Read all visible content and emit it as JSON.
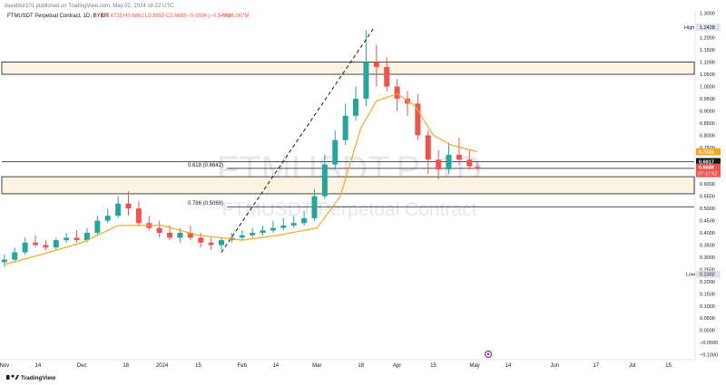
{
  "header": {
    "author_line": "daviddor101 published on TradingView.com, May 02, 2024 16:22 UTC",
    "symbol_line": "FTMUSDT Perpetual Contract, 1D, BYBIT",
    "ohlc": {
      "o": "O0.6725",
      "h": "H0.6862",
      "l": "L0.6555",
      "c": "C0.6689",
      "chg": "−0.0036 (−0.54%)",
      "vol": "Vol6.067M"
    }
  },
  "watermark": {
    "symbol": "FTMUSDT.P, 1D",
    "name": "FTMUSDT Perpetual Contract"
  },
  "footer": {
    "brand": "TradingView"
  },
  "colors": {
    "up": "#26a69a",
    "down": "#ef5350",
    "ema": "#f5a623",
    "zone_fill": "#fdf3e3",
    "price_tag": "#ef5350",
    "ema_tag": "#f5a623",
    "level_tag": "#131722"
  },
  "chart_data": {
    "type": "candlestick",
    "y_ticks": [
      "1.3000",
      "1.2000",
      "1.1500",
      "1.1000",
      "1.0500",
      "1.0000",
      "0.9500",
      "0.9000",
      "0.8500",
      "0.8000",
      "0.7500",
      "0.6500",
      "0.6000",
      "0.5500",
      "0.5000",
      "0.4500",
      "0.4000",
      "0.3500",
      "0.3000",
      "0.2500",
      "0.2000",
      "0.1500",
      "0.1000",
      "0.0500",
      "0.0000",
      "−0.0500",
      "−0.1000"
    ],
    "ylim": [
      -0.12,
      1.31
    ],
    "x_ticks": [
      "Nov",
      "14",
      "Dec",
      "18",
      "2024",
      "15",
      "Feb",
      "14",
      "Mar",
      "18",
      "Apr",
      "15",
      "May",
      "14",
      "Jun",
      "17",
      "Jul",
      "15"
    ],
    "x_tick_dates": [
      "2023-11-01",
      "2023-11-14",
      "2023-12-01",
      "2023-12-18",
      "2024-01-01",
      "2024-01-15",
      "2024-02-01",
      "2024-02-14",
      "2024-03-01",
      "2024-03-18",
      "2024-04-01",
      "2024-04-15",
      "2024-05-01",
      "2024-05-14",
      "2024-06-01",
      "2024-06-17",
      "2024-07-01",
      "2024-07-15"
    ],
    "xlim": [
      "2023-10-31",
      "2024-07-25"
    ],
    "series": [
      {
        "type": "candlestick",
        "dates": [
          "2023-11-01",
          "2023-11-05",
          "2023-11-09",
          "2023-11-13",
          "2023-11-17",
          "2023-11-21",
          "2023-11-25",
          "2023-11-29",
          "2023-12-03",
          "2023-12-07",
          "2023-12-11",
          "2023-12-15",
          "2023-12-19",
          "2023-12-23",
          "2023-12-27",
          "2023-12-31",
          "2024-01-04",
          "2024-01-08",
          "2024-01-12",
          "2024-01-16",
          "2024-01-20",
          "2024-01-24",
          "2024-01-28",
          "2024-02-01",
          "2024-02-05",
          "2024-02-09",
          "2024-02-13",
          "2024-02-17",
          "2024-02-21",
          "2024-02-25",
          "2024-02-29",
          "2024-03-04",
          "2024-03-08",
          "2024-03-12",
          "2024-03-16",
          "2024-03-20",
          "2024-03-24",
          "2024-03-28",
          "2024-04-01",
          "2024-04-05",
          "2024-04-09",
          "2024-04-13",
          "2024-04-17",
          "2024-04-21",
          "2024-04-25",
          "2024-04-29",
          "2024-05-02"
        ],
        "open": [
          0.28,
          0.29,
          0.32,
          0.36,
          0.35,
          0.34,
          0.37,
          0.38,
          0.37,
          0.4,
          0.45,
          0.47,
          0.52,
          0.5,
          0.44,
          0.42,
          0.4,
          0.38,
          0.4,
          0.38,
          0.36,
          0.35,
          0.37,
          0.38,
          0.39,
          0.4,
          0.41,
          0.42,
          0.43,
          0.44,
          0.46,
          0.55,
          0.68,
          0.78,
          0.88,
          0.95,
          1.1,
          1.08,
          1.0,
          0.95,
          0.93,
          0.8,
          0.7,
          0.66,
          0.72,
          0.7,
          0.6725
        ],
        "high": [
          0.31,
          0.34,
          0.38,
          0.39,
          0.37,
          0.38,
          0.4,
          0.41,
          0.42,
          0.47,
          0.5,
          0.55,
          0.57,
          0.53,
          0.47,
          0.45,
          0.43,
          0.42,
          0.43,
          0.4,
          0.38,
          0.38,
          0.4,
          0.41,
          0.42,
          0.43,
          0.45,
          0.46,
          0.47,
          0.49,
          0.58,
          0.72,
          0.82,
          0.93,
          1.0,
          1.23,
          1.17,
          1.12,
          1.03,
          0.98,
          0.97,
          0.82,
          0.74,
          0.77,
          0.79,
          0.74,
          0.6862
        ],
        "low": [
          0.26,
          0.28,
          0.31,
          0.34,
          0.33,
          0.33,
          0.36,
          0.36,
          0.36,
          0.39,
          0.44,
          0.46,
          0.47,
          0.43,
          0.41,
          0.38,
          0.37,
          0.36,
          0.37,
          0.34,
          0.33,
          0.33,
          0.36,
          0.37,
          0.38,
          0.39,
          0.4,
          0.41,
          0.42,
          0.43,
          0.45,
          0.54,
          0.66,
          0.76,
          0.86,
          0.92,
          1.0,
          0.98,
          0.9,
          0.88,
          0.78,
          0.64,
          0.62,
          0.64,
          0.68,
          0.66,
          0.6555
        ],
        "close": [
          0.29,
          0.32,
          0.36,
          0.35,
          0.34,
          0.37,
          0.38,
          0.37,
          0.4,
          0.45,
          0.47,
          0.52,
          0.5,
          0.44,
          0.42,
          0.4,
          0.38,
          0.4,
          0.38,
          0.36,
          0.35,
          0.37,
          0.38,
          0.39,
          0.4,
          0.41,
          0.42,
          0.43,
          0.44,
          0.46,
          0.55,
          0.68,
          0.78,
          0.88,
          0.95,
          1.1,
          1.08,
          1.0,
          0.95,
          0.93,
          0.8,
          0.7,
          0.66,
          0.72,
          0.7,
          0.6725,
          0.6689
        ]
      },
      {
        "type": "line",
        "dates": [
          "2023-11-01",
          "2023-11-15",
          "2023-12-01",
          "2023-12-15",
          "2024-01-01",
          "2024-01-15",
          "2024-02-01",
          "2024-02-15",
          "2024-03-01",
          "2024-03-10",
          "2024-03-18",
          "2024-03-24",
          "2024-04-01",
          "2024-04-08",
          "2024-04-15",
          "2024-04-22",
          "2024-05-02"
        ],
        "values": [
          0.27,
          0.31,
          0.36,
          0.43,
          0.43,
          0.39,
          0.37,
          0.39,
          0.42,
          0.55,
          0.83,
          0.94,
          0.97,
          0.92,
          0.8,
          0.76,
          0.7323
        ]
      }
    ],
    "levels": [
      {
        "label": "0.618 (0.6642)",
        "value": 0.6642
      },
      {
        "label": "0.786 (0.5069)",
        "value": 0.5069
      }
    ],
    "zones": [
      {
        "low": 1.05,
        "high": 1.1
      },
      {
        "low": 0.56,
        "high": 0.63
      }
    ],
    "trendline": {
      "from": {
        "date": "2024-01-24",
        "value": 0.32
      },
      "to": {
        "date": "2024-03-23",
        "value": 1.24
      }
    },
    "price_tags": {
      "high": {
        "label": "High",
        "value": "1.2428"
      },
      "low": {
        "label": "Low",
        "value": "0.2302"
      },
      "ema": "0.7323",
      "level": "0.6917",
      "last": "0.6689",
      "countdown": "07:37:52"
    }
  }
}
